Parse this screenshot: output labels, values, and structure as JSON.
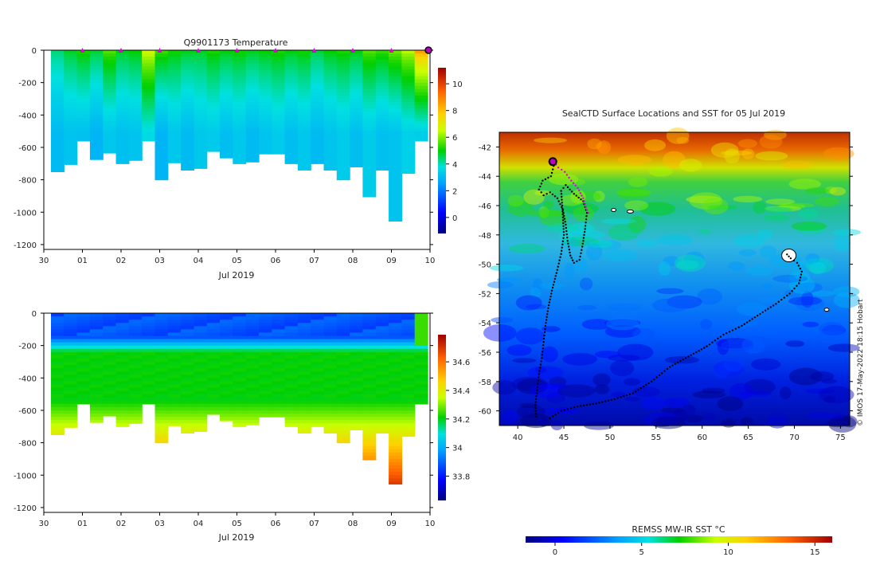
{
  "chart_data": [
    {
      "type": "heatmap",
      "id": "temperature-section",
      "title": "Q9901173  Temperature",
      "x_ticks": [
        "30",
        "01",
        "02",
        "03",
        "04",
        "05",
        "06",
        "07",
        "08",
        "09",
        "10"
      ],
      "x_label": "Jul 2019",
      "y_ticks": [
        0,
        -200,
        -400,
        -600,
        -800,
        -1000,
        -1200
      ],
      "ylim": [
        -1230,
        0
      ],
      "colorbar": {
        "ticks": [
          0,
          2,
          4,
          6,
          8,
          10
        ],
        "range": [
          -1.2,
          11.2
        ]
      },
      "profile_markers_days": [
        1,
        2,
        3,
        4,
        5,
        6,
        7,
        8,
        9
      ],
      "latest_marker_day": 10,
      "profile_max_depth": [
        750,
        705,
        560,
        675,
        635,
        700,
        680,
        560,
        800,
        695,
        740,
        730,
        625,
        665,
        700,
        690,
        640,
        640,
        700,
        740,
        700,
        740,
        800,
        720,
        905,
        740,
        1055,
        760,
        560
      ],
      "profile_surface_temp": [
        4.5,
        4.8,
        5.0,
        4.8,
        5.5,
        5.0,
        5.0,
        6.5,
        5.5,
        5.0,
        5.0,
        4.8,
        5.0,
        5.0,
        5.0,
        5.0,
        5.0,
        5.0,
        5.0,
        5.0,
        4.8,
        5.0,
        5.0,
        5.0,
        5.5,
        5.5,
        5.8,
        6.2,
        8.5
      ],
      "profile_deep_temp": [
        3.2,
        3.2,
        3.0,
        3.0,
        3.2,
        3.3,
        3.2,
        3.5,
        3.0,
        3.2,
        3.2,
        3.3,
        3.2,
        3.2,
        3.2,
        3.2,
        3.2,
        3.2,
        3.2,
        3.2,
        3.2,
        3.2,
        3.2,
        3.2,
        3.3,
        3.3,
        3.2,
        3.3,
        3.5
      ]
    },
    {
      "type": "heatmap",
      "id": "salinity-section",
      "title": "",
      "x_ticks": [
        "30",
        "01",
        "02",
        "03",
        "04",
        "05",
        "06",
        "07",
        "08",
        "09",
        "10"
      ],
      "x_label": "Jul 2019",
      "y_ticks": [
        0,
        -200,
        -400,
        -600,
        -800,
        -1000,
        -1200
      ],
      "ylim": [
        -1230,
        0
      ],
      "colorbar": {
        "ticks": [
          33.8,
          34,
          34.2,
          34.4,
          34.6
        ],
        "range": [
          33.63,
          34.79
        ]
      },
      "profile_max_depth": [
        750,
        705,
        560,
        675,
        635,
        700,
        680,
        560,
        800,
        695,
        740,
        730,
        625,
        665,
        700,
        690,
        640,
        640,
        700,
        740,
        700,
        740,
        800,
        720,
        905,
        740,
        1055,
        760,
        560
      ]
    },
    {
      "type": "map",
      "id": "sst-map",
      "title": "SealCTD Surface Locations and SST for 05 Jul 2019",
      "x_ticks": [
        40,
        45,
        50,
        55,
        60,
        65,
        70,
        75
      ],
      "y_ticks": [
        -42,
        -44,
        -46,
        -48,
        -50,
        -52,
        -54,
        -56,
        -58,
        -60
      ],
      "lon_range": [
        38,
        76
      ],
      "lat_range": [
        -61,
        -41
      ],
      "colorbar_label": "REMSS MW-IR SST °C",
      "colorbar_ticks": [
        0,
        5,
        10,
        15
      ],
      "colorbar_range": [
        -1.7,
        16
      ],
      "credit": "© IMOS 17-May-2022 18:15 Hobart",
      "track_black": [
        [
          42,
          -60.4
        ],
        [
          41.9,
          -59.6
        ],
        [
          42.1,
          -58.6
        ],
        [
          42.3,
          -57.5
        ],
        [
          42.6,
          -56.4
        ],
        [
          42.8,
          -55.3
        ],
        [
          43.0,
          -54.2
        ],
        [
          43.3,
          -53.0
        ],
        [
          43.7,
          -51.8
        ],
        [
          44.2,
          -50.6
        ],
        [
          44.7,
          -49.3
        ],
        [
          45.0,
          -48.0
        ],
        [
          44.9,
          -46.8
        ],
        [
          44.8,
          -45.8
        ],
        [
          44.7,
          -45.0
        ],
        [
          45.2,
          -44.6
        ],
        [
          46.1,
          -45.2
        ],
        [
          47.1,
          -45.7
        ],
        [
          47.5,
          -46.5
        ],
        [
          47.3,
          -47.6
        ],
        [
          47.0,
          -48.8
        ],
        [
          46.7,
          -49.7
        ],
        [
          46.1,
          -49.9
        ],
        [
          45.7,
          -49.4
        ],
        [
          45.4,
          -48.4
        ],
        [
          45.2,
          -47.3
        ],
        [
          44.9,
          -46.3
        ],
        [
          44.3,
          -45.5
        ],
        [
          43.5,
          -45.1
        ],
        [
          42.8,
          -45.3
        ],
        [
          42.3,
          -44.9
        ],
        [
          42.7,
          -44.3
        ],
        [
          43.6,
          -44.0
        ],
        [
          43.9,
          -43.3
        ],
        [
          43.9,
          -43.0
        ]
      ],
      "track_black_2": [
        [
          43.5,
          -60.5
        ],
        [
          44.7,
          -60.0
        ],
        [
          46.5,
          -59.7
        ],
        [
          48.5,
          -59.5
        ],
        [
          50.5,
          -59.2
        ],
        [
          52.5,
          -58.8
        ],
        [
          54.5,
          -58.0
        ],
        [
          56.5,
          -57.0
        ],
        [
          58.5,
          -56.3
        ],
        [
          60.5,
          -55.6
        ],
        [
          62.3,
          -54.8
        ],
        [
          64.3,
          -54.2
        ],
        [
          66.0,
          -53.5
        ],
        [
          68.0,
          -52.7
        ],
        [
          69.5,
          -52.0
        ],
        [
          70.5,
          -51.3
        ],
        [
          70.8,
          -50.5
        ],
        [
          70.3,
          -49.9
        ],
        [
          69.6,
          -49.6
        ],
        [
          69.0,
          -49.2
        ]
      ],
      "track_magenta": [
        [
          43.9,
          -43.0
        ],
        [
          44.4,
          -43.4
        ],
        [
          45.1,
          -43.7
        ],
        [
          45.8,
          -44.3
        ],
        [
          46.5,
          -44.8
        ],
        [
          47.1,
          -45.5
        ],
        [
          47.5,
          -46.3
        ],
        [
          47.8,
          -46.7
        ]
      ],
      "current_position": [
        43.8,
        -43.0
      ]
    }
  ]
}
